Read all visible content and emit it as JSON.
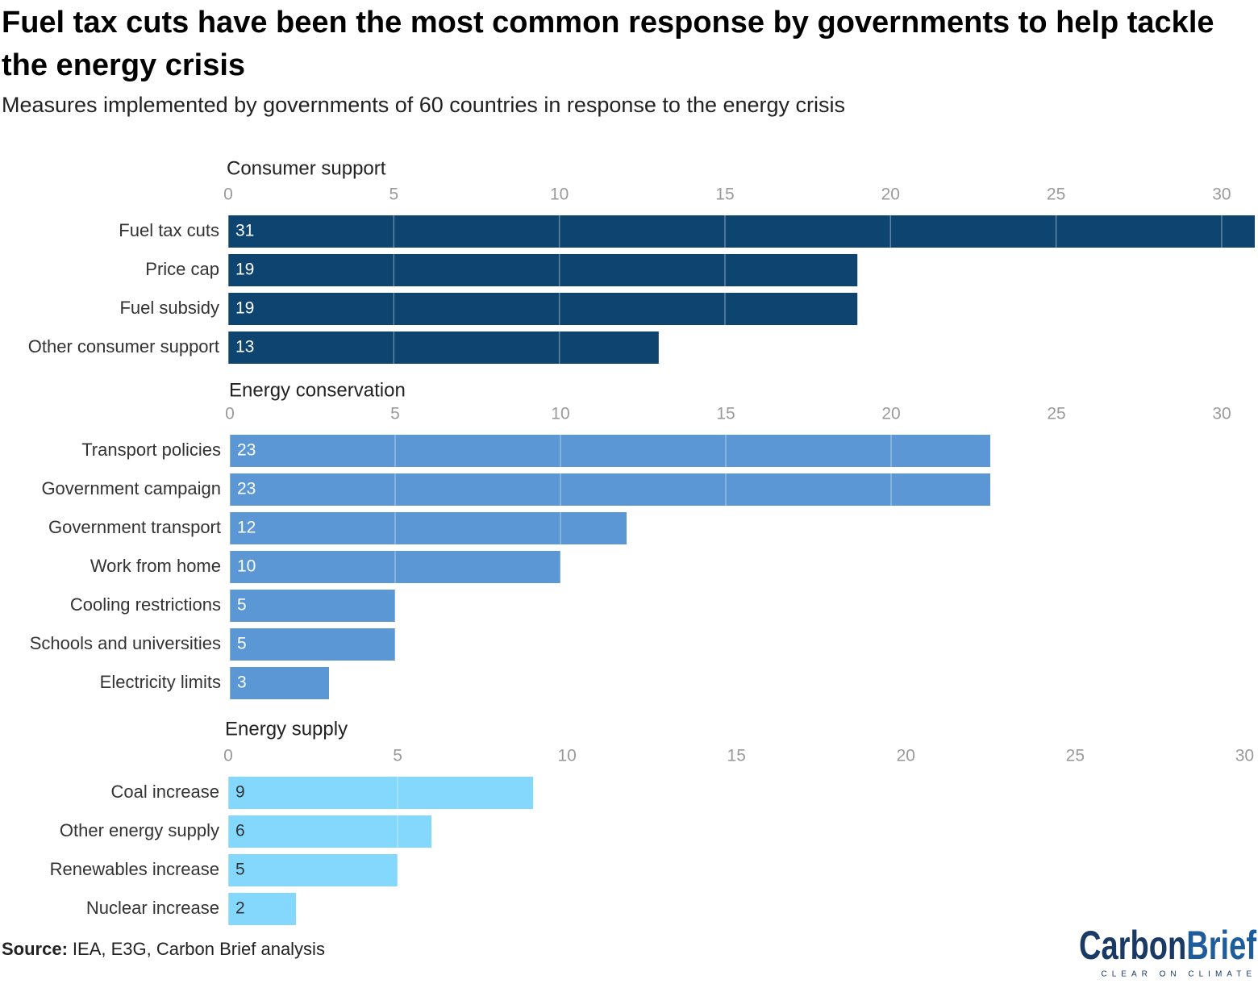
{
  "title": "Fuel tax cuts have been the most common response by governments to help tackle the energy crisis",
  "subtitle": "Measures implemented by governments of 60 countries in response to the energy crisis",
  "source_label": "Source:",
  "source": "IEA, E3G, Carbon Brief analysis",
  "logo": {
    "name_1": "Carbon",
    "name_2": "Brief",
    "tagline": "CLEAR ON CLIMATE"
  },
  "chart_data": [
    {
      "type": "bar",
      "orientation": "horizontal",
      "title": "Consumer support",
      "categories": [
        "Fuel tax cuts",
        "Price cap",
        "Fuel subsidy",
        "Other consumer support"
      ],
      "values": [
        31,
        19,
        19,
        13
      ],
      "color": "#0e4470",
      "label_color": "#ffffff",
      "xlim": [
        0,
        31
      ],
      "xticks": [
        0,
        5,
        10,
        15,
        20,
        25,
        30
      ],
      "grid": true
    },
    {
      "type": "bar",
      "orientation": "horizontal",
      "title": "Energy conservation",
      "categories": [
        "Transport policies",
        "Government campaign",
        "Government transport",
        "Work from home",
        "Cooling restrictions",
        "Schools and universities",
        "Electricity limits"
      ],
      "values": [
        23,
        23,
        12,
        10,
        5,
        5,
        3
      ],
      "color": "#5b97d5",
      "label_color": "#ffffff",
      "xlim": [
        0,
        31
      ],
      "xticks": [
        0,
        5,
        10,
        15,
        20,
        25,
        30
      ],
      "grid": true
    },
    {
      "type": "bar",
      "orientation": "horizontal",
      "title": "Energy supply",
      "categories": [
        "Coal increase",
        "Other energy supply",
        "Renewables increase",
        "Nuclear increase"
      ],
      "values": [
        9,
        6,
        5,
        2
      ],
      "color": "#85d8fd",
      "label_color": "#333333",
      "xlim": [
        0,
        30.3
      ],
      "xticks": [
        0,
        5,
        10,
        15,
        20,
        25,
        30
      ],
      "grid": true
    }
  ]
}
